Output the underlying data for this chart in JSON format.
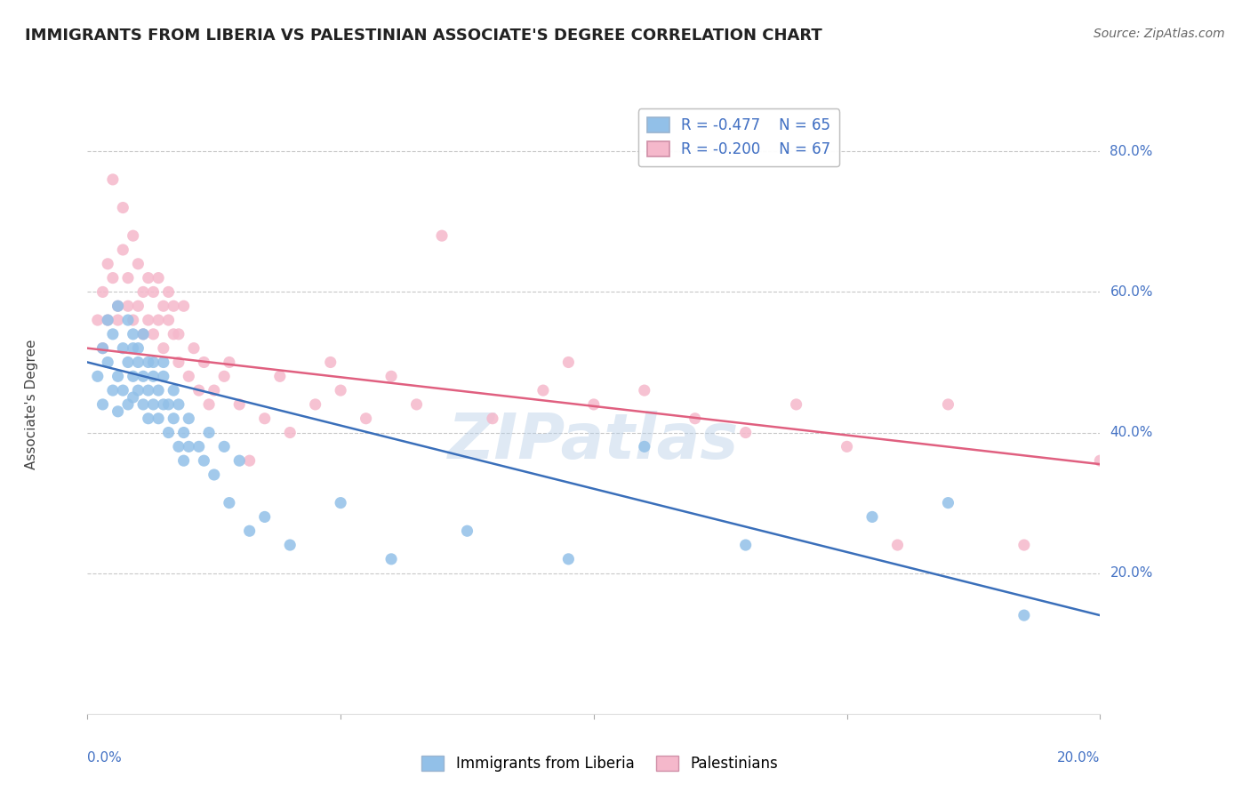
{
  "title": "IMMIGRANTS FROM LIBERIA VS PALESTINIAN ASSOCIATE'S DEGREE CORRELATION CHART",
  "source": "Source: ZipAtlas.com",
  "ylabel": "Associate's Degree",
  "legend_blue_r": "R = -0.477",
  "legend_blue_n": "N = 65",
  "legend_pink_r": "R = -0.200",
  "legend_pink_n": "N = 67",
  "legend_blue_label": "Immigrants from Liberia",
  "legend_pink_label": "Palestinians",
  "xmin": 0.0,
  "xmax": 0.2,
  "ymin": 0.0,
  "ymax": 0.88,
  "yticks": [
    0.2,
    0.4,
    0.6,
    0.8
  ],
  "xticks": [
    0.0,
    0.05,
    0.1,
    0.15,
    0.2
  ],
  "blue_color": "#92c0e8",
  "pink_color": "#f5b8cb",
  "blue_line_color": "#3a6fba",
  "pink_line_color": "#e06080",
  "watermark": "ZIPatlas",
  "title_color": "#222222",
  "axis_label_color": "#4472c4",
  "grid_color": "#c8c8c8",
  "blue_line_x0": 0.0,
  "blue_line_y0": 0.5,
  "blue_line_x1": 0.2,
  "blue_line_y1": 0.14,
  "pink_line_x0": 0.0,
  "pink_line_y0": 0.52,
  "pink_line_x1": 0.2,
  "pink_line_y1": 0.355,
  "blue_scatter_x": [
    0.002,
    0.003,
    0.003,
    0.004,
    0.004,
    0.005,
    0.005,
    0.006,
    0.006,
    0.006,
    0.007,
    0.007,
    0.008,
    0.008,
    0.008,
    0.009,
    0.009,
    0.009,
    0.009,
    0.01,
    0.01,
    0.01,
    0.011,
    0.011,
    0.011,
    0.012,
    0.012,
    0.012,
    0.013,
    0.013,
    0.013,
    0.014,
    0.014,
    0.015,
    0.015,
    0.015,
    0.016,
    0.016,
    0.017,
    0.017,
    0.018,
    0.018,
    0.019,
    0.019,
    0.02,
    0.02,
    0.022,
    0.023,
    0.024,
    0.025,
    0.027,
    0.028,
    0.03,
    0.032,
    0.035,
    0.04,
    0.05,
    0.06,
    0.075,
    0.095,
    0.11,
    0.13,
    0.155,
    0.17,
    0.185
  ],
  "blue_scatter_y": [
    0.48,
    0.52,
    0.44,
    0.5,
    0.56,
    0.46,
    0.54,
    0.58,
    0.48,
    0.43,
    0.52,
    0.46,
    0.5,
    0.44,
    0.56,
    0.52,
    0.45,
    0.48,
    0.54,
    0.5,
    0.46,
    0.52,
    0.48,
    0.44,
    0.54,
    0.5,
    0.46,
    0.42,
    0.5,
    0.44,
    0.48,
    0.46,
    0.42,
    0.48,
    0.44,
    0.5,
    0.44,
    0.4,
    0.42,
    0.46,
    0.38,
    0.44,
    0.4,
    0.36,
    0.38,
    0.42,
    0.38,
    0.36,
    0.4,
    0.34,
    0.38,
    0.3,
    0.36,
    0.26,
    0.28,
    0.24,
    0.3,
    0.22,
    0.26,
    0.22,
    0.38,
    0.24,
    0.28,
    0.3,
    0.14
  ],
  "pink_scatter_x": [
    0.002,
    0.003,
    0.003,
    0.004,
    0.004,
    0.005,
    0.005,
    0.006,
    0.006,
    0.007,
    0.007,
    0.008,
    0.008,
    0.009,
    0.009,
    0.01,
    0.01,
    0.011,
    0.011,
    0.012,
    0.012,
    0.013,
    0.013,
    0.014,
    0.014,
    0.015,
    0.015,
    0.016,
    0.016,
    0.017,
    0.017,
    0.018,
    0.018,
    0.019,
    0.02,
    0.021,
    0.022,
    0.023,
    0.024,
    0.025,
    0.027,
    0.028,
    0.03,
    0.032,
    0.035,
    0.038,
    0.04,
    0.045,
    0.048,
    0.05,
    0.055,
    0.06,
    0.065,
    0.07,
    0.08,
    0.09,
    0.095,
    0.1,
    0.11,
    0.12,
    0.13,
    0.14,
    0.15,
    0.16,
    0.17,
    0.185,
    0.2
  ],
  "pink_scatter_y": [
    0.56,
    0.6,
    0.52,
    0.64,
    0.56,
    0.76,
    0.62,
    0.56,
    0.58,
    0.72,
    0.66,
    0.62,
    0.58,
    0.68,
    0.56,
    0.64,
    0.58,
    0.6,
    0.54,
    0.62,
    0.56,
    0.6,
    0.54,
    0.56,
    0.62,
    0.58,
    0.52,
    0.56,
    0.6,
    0.54,
    0.58,
    0.5,
    0.54,
    0.58,
    0.48,
    0.52,
    0.46,
    0.5,
    0.44,
    0.46,
    0.48,
    0.5,
    0.44,
    0.36,
    0.42,
    0.48,
    0.4,
    0.44,
    0.5,
    0.46,
    0.42,
    0.48,
    0.44,
    0.68,
    0.42,
    0.46,
    0.5,
    0.44,
    0.46,
    0.42,
    0.4,
    0.44,
    0.38,
    0.24,
    0.44,
    0.24,
    0.36
  ]
}
